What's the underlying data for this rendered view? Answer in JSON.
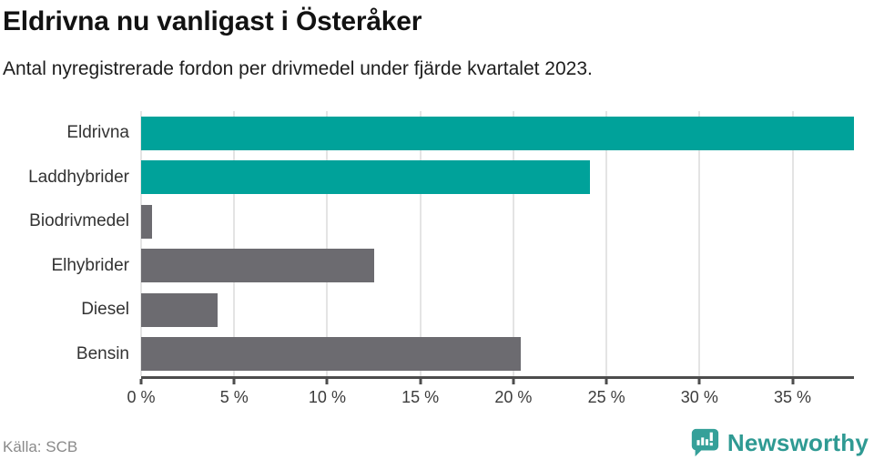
{
  "header": {
    "title": "Eldrivna nu vanligast i Österåker",
    "subtitle": "Antal nyregistrerade fordon per drivmedel under fjärde kvartalet 2023."
  },
  "chart_data": {
    "type": "bar",
    "orientation": "horizontal",
    "title": "Eldrivna nu vanligast i Österåker",
    "subtitle": "Antal nyregistrerade fordon per drivmedel under fjärde kvartalet 2023.",
    "categories": [
      "Eldrivna",
      "Laddhybrider",
      "Biodrivmedel",
      "Elhybrider",
      "Diesel",
      "Bensin"
    ],
    "values": [
      38.3,
      24.1,
      0.6,
      12.5,
      4.1,
      20.4
    ],
    "unit": "%",
    "xlim": [
      0,
      38.3
    ],
    "xticks": [
      0,
      5,
      10,
      15,
      20,
      25,
      30,
      35
    ],
    "xtick_labels": [
      "0 %",
      "5 %",
      "10 %",
      "15 %",
      "20 %",
      "25 %",
      "30 %",
      "35 %"
    ],
    "bar_colors": [
      "#00a29a",
      "#00a29a",
      "#6c6b70",
      "#6c6b70",
      "#6c6b70",
      "#6c6b70"
    ],
    "grid": true,
    "legend": false,
    "accent_color": "#00a29a",
    "neutral_color": "#6c6b70"
  },
  "footer": {
    "source": "Källa: SCB",
    "brand": "Newsworthy",
    "brand_color": "#2f9a93"
  }
}
